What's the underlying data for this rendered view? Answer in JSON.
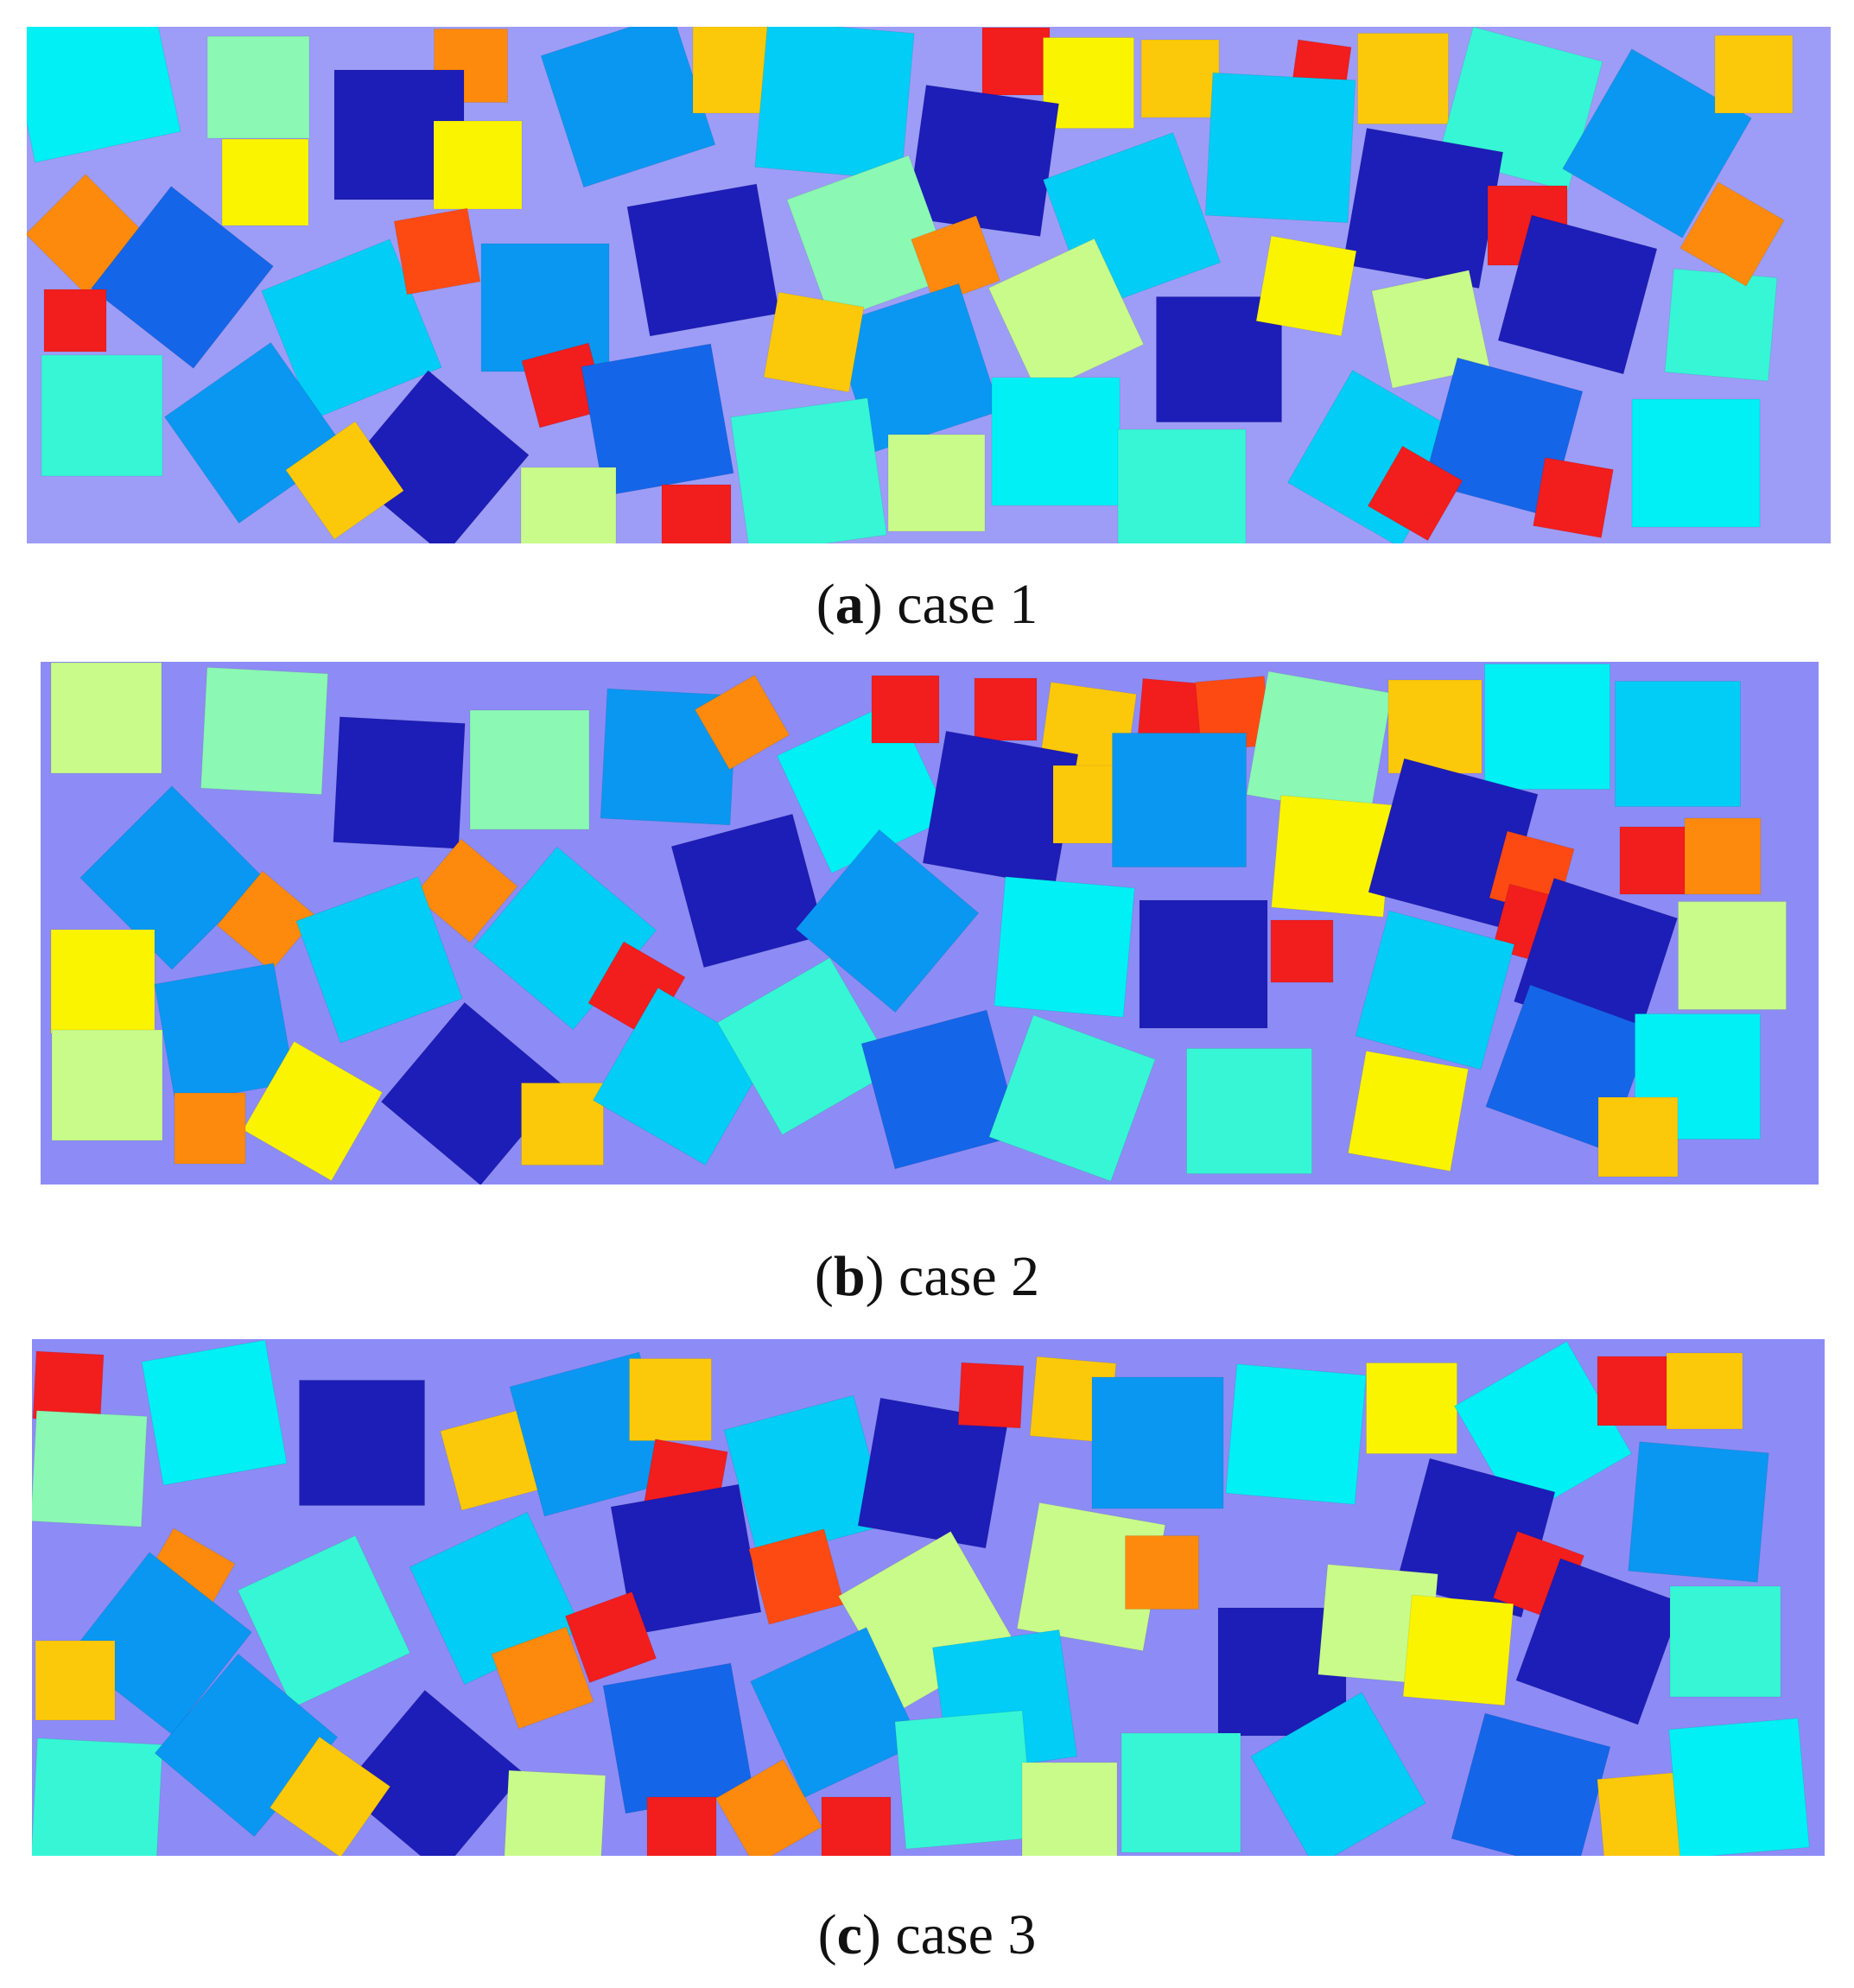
{
  "panels": [
    {
      "id": "a",
      "letter": "a",
      "caption": "case 1"
    },
    {
      "id": "b",
      "letter": "b",
      "caption": "case 2"
    },
    {
      "id": "c",
      "letter": "c",
      "caption": "case 3"
    }
  ],
  "colors": {
    "darkblue": "#1d1db8",
    "blue": "#1565e8",
    "midblue": "#0a97f2",
    "skyblue": "#02cdf6",
    "cyan": "#00f0f5",
    "aqua": "#37f6d6",
    "mint": "#8bf8b4",
    "lime": "#c9fb8a",
    "yellow": "#fbf400",
    "gold": "#fcc90a",
    "orange": "#fd8a0c",
    "redorange": "#fc4a12",
    "red": "#f21d1d"
  }
}
